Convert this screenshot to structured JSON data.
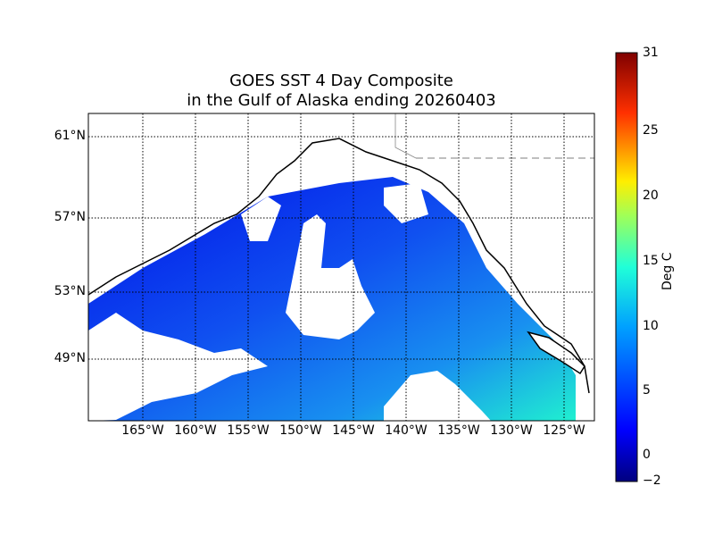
{
  "title": {
    "line1": "GOES SST 4 Day Composite",
    "line2": "in the Gulf of Alaska ending 20260403"
  },
  "chart_data": {
    "type": "heatmap",
    "title": "GOES SST 4 Day Composite in the Gulf of Alaska ending 20260403",
    "lat_labels": [
      "61°N",
      "57°N",
      "53°N",
      "49°N"
    ],
    "lon_labels": [
      "165°W",
      "160°W",
      "155°W",
      "150°W",
      "145°W",
      "140°W",
      "135°W",
      "130°W",
      "125°W"
    ],
    "grid": true,
    "colorbar": {
      "label": "Deg C",
      "range": [
        -2,
        31
      ],
      "ticks": [
        "31",
        "25",
        "20",
        "15",
        "10",
        "5",
        "0",
        "−2"
      ],
      "colormap": "jet"
    },
    "description_values": {
      "typical_sst_range_degC": [
        2,
        11
      ]
    }
  },
  "colors": {
    "land": "#ffffff",
    "coast": "#000000",
    "cold": "#1030f0",
    "warm": "#20e8d8"
  }
}
